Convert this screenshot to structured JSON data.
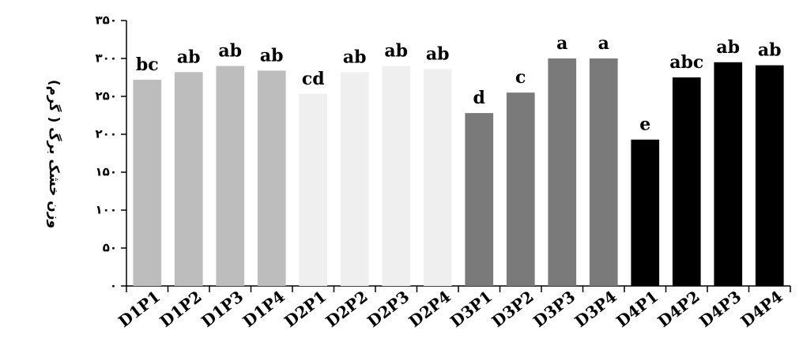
{
  "chart_data": {
    "type": "bar",
    "ylabel": "وزن خشک برگ ( گرم)",
    "ylim": [
      0,
      350
    ],
    "yticks": [
      0,
      50,
      100,
      150,
      200,
      250,
      300,
      350
    ],
    "ytick_labels": [
      "۰",
      "۵۰",
      "۱۰۰",
      "۱۵۰",
      "۲۰۰",
      "۲۵۰",
      "۳۰۰",
      "۳۵۰"
    ],
    "categories": [
      "D1P1",
      "D1P2",
      "D1P3",
      "D1P4",
      "D2P1",
      "D2P2",
      "D2P3",
      "D2P4",
      "D3P1",
      "D3P2",
      "D3P3",
      "D3P4",
      "D4P1",
      "D4P2",
      "D4P3",
      "D4P4"
    ],
    "values": [
      272,
      282,
      290,
      284,
      253,
      282,
      290,
      286,
      228,
      255,
      300,
      300,
      193,
      275,
      295,
      291
    ],
    "significance_labels": [
      "bc",
      "ab",
      "ab",
      "ab",
      "cd",
      "ab",
      "ab",
      "ab",
      "d",
      "c",
      "a",
      "a",
      "e",
      "abc",
      "ab",
      "ab"
    ],
    "colors": [
      "#bdbdbd",
      "#bdbdbd",
      "#bdbdbd",
      "#bdbdbd",
      "#efefef",
      "#efefef",
      "#efefef",
      "#efefef",
      "#7a7a7a",
      "#7a7a7a",
      "#7a7a7a",
      "#7a7a7a",
      "#000000",
      "#000000",
      "#000000",
      "#000000"
    ],
    "grid": false,
    "legend": "none"
  }
}
